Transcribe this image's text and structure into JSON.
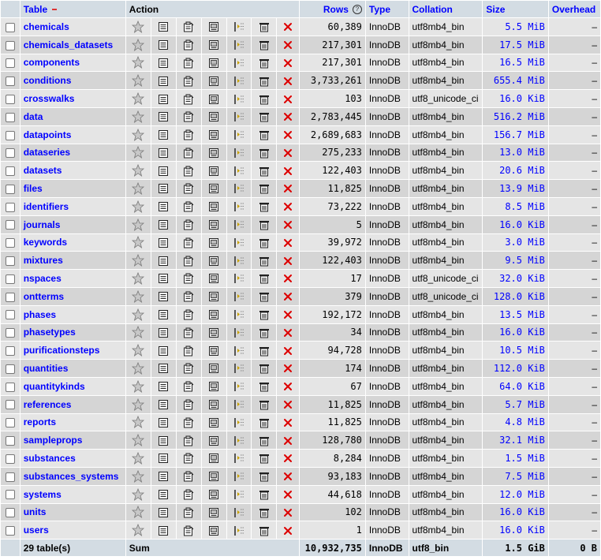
{
  "header": {
    "table": "Table",
    "action": "Action",
    "rows": "Rows",
    "type": "Type",
    "collation": "Collation",
    "size": "Size",
    "overhead": "Overhead"
  },
  "rows": [
    {
      "name": "chemicals",
      "rows": "60,389",
      "type": "InnoDB",
      "collation": "utf8mb4_bin",
      "size": "5.5 MiB",
      "overhead": "–"
    },
    {
      "name": "chemicals_datasets",
      "rows": "217,301",
      "type": "InnoDB",
      "collation": "utf8mb4_bin",
      "size": "17.5 MiB",
      "overhead": "–"
    },
    {
      "name": "components",
      "rows": "217,301",
      "type": "InnoDB",
      "collation": "utf8mb4_bin",
      "size": "16.5 MiB",
      "overhead": "–"
    },
    {
      "name": "conditions",
      "rows": "3,733,261",
      "type": "InnoDB",
      "collation": "utf8mb4_bin",
      "size": "655.4 MiB",
      "overhead": "–"
    },
    {
      "name": "crosswalks",
      "rows": "103",
      "type": "InnoDB",
      "collation": "utf8_unicode_ci",
      "size": "16.0 KiB",
      "overhead": "–"
    },
    {
      "name": "data",
      "rows": "2,783,445",
      "type": "InnoDB",
      "collation": "utf8mb4_bin",
      "size": "516.2 MiB",
      "overhead": "–"
    },
    {
      "name": "datapoints",
      "rows": "2,689,683",
      "type": "InnoDB",
      "collation": "utf8mb4_bin",
      "size": "156.7 MiB",
      "overhead": "–"
    },
    {
      "name": "dataseries",
      "rows": "275,233",
      "type": "InnoDB",
      "collation": "utf8mb4_bin",
      "size": "13.0 MiB",
      "overhead": "–"
    },
    {
      "name": "datasets",
      "rows": "122,403",
      "type": "InnoDB",
      "collation": "utf8mb4_bin",
      "size": "20.6 MiB",
      "overhead": "–"
    },
    {
      "name": "files",
      "rows": "11,825",
      "type": "InnoDB",
      "collation": "utf8mb4_bin",
      "size": "13.9 MiB",
      "overhead": "–"
    },
    {
      "name": "identifiers",
      "rows": "73,222",
      "type": "InnoDB",
      "collation": "utf8mb4_bin",
      "size": "8.5 MiB",
      "overhead": "–"
    },
    {
      "name": "journals",
      "rows": "5",
      "type": "InnoDB",
      "collation": "utf8mb4_bin",
      "size": "16.0 KiB",
      "overhead": "–"
    },
    {
      "name": "keywords",
      "rows": "39,972",
      "type": "InnoDB",
      "collation": "utf8mb4_bin",
      "size": "3.0 MiB",
      "overhead": "–"
    },
    {
      "name": "mixtures",
      "rows": "122,403",
      "type": "InnoDB",
      "collation": "utf8mb4_bin",
      "size": "9.5 MiB",
      "overhead": "–"
    },
    {
      "name": "nspaces",
      "rows": "17",
      "type": "InnoDB",
      "collation": "utf8_unicode_ci",
      "size": "32.0 KiB",
      "overhead": "–"
    },
    {
      "name": "ontterms",
      "rows": "379",
      "type": "InnoDB",
      "collation": "utf8_unicode_ci",
      "size": "128.0 KiB",
      "overhead": "–"
    },
    {
      "name": "phases",
      "rows": "192,172",
      "type": "InnoDB",
      "collation": "utf8mb4_bin",
      "size": "13.5 MiB",
      "overhead": "–"
    },
    {
      "name": "phasetypes",
      "rows": "34",
      "type": "InnoDB",
      "collation": "utf8mb4_bin",
      "size": "16.0 KiB",
      "overhead": "–"
    },
    {
      "name": "purificationsteps",
      "rows": "94,728",
      "type": "InnoDB",
      "collation": "utf8mb4_bin",
      "size": "10.5 MiB",
      "overhead": "–"
    },
    {
      "name": "quantities",
      "rows": "174",
      "type": "InnoDB",
      "collation": "utf8mb4_bin",
      "size": "112.0 KiB",
      "overhead": "–"
    },
    {
      "name": "quantitykinds",
      "rows": "67",
      "type": "InnoDB",
      "collation": "utf8mb4_bin",
      "size": "64.0 KiB",
      "overhead": "–"
    },
    {
      "name": "references",
      "rows": "11,825",
      "type": "InnoDB",
      "collation": "utf8mb4_bin",
      "size": "5.7 MiB",
      "overhead": "–"
    },
    {
      "name": "reports",
      "rows": "11,825",
      "type": "InnoDB",
      "collation": "utf8mb4_bin",
      "size": "4.8 MiB",
      "overhead": "–"
    },
    {
      "name": "sampleprops",
      "rows": "128,780",
      "type": "InnoDB",
      "collation": "utf8mb4_bin",
      "size": "32.1 MiB",
      "overhead": "–"
    },
    {
      "name": "substances",
      "rows": "8,284",
      "type": "InnoDB",
      "collation": "utf8mb4_bin",
      "size": "1.5 MiB",
      "overhead": "–"
    },
    {
      "name": "substances_systems",
      "rows": "93,183",
      "type": "InnoDB",
      "collation": "utf8mb4_bin",
      "size": "7.5 MiB",
      "overhead": "–"
    },
    {
      "name": "systems",
      "rows": "44,618",
      "type": "InnoDB",
      "collation": "utf8mb4_bin",
      "size": "12.0 MiB",
      "overhead": "–"
    },
    {
      "name": "units",
      "rows": "102",
      "type": "InnoDB",
      "collation": "utf8mb4_bin",
      "size": "16.0 KiB",
      "overhead": "–"
    },
    {
      "name": "users",
      "rows": "1",
      "type": "InnoDB",
      "collation": "utf8mb4_bin",
      "size": "16.0 KiB",
      "overhead": "–"
    }
  ],
  "summary": {
    "count": "29 table(s)",
    "label": "Sum",
    "rows": "10,932,735",
    "type": "InnoDB",
    "collation": "utf8_bin",
    "size": "1.5 GiB",
    "overhead": "0 B"
  },
  "icons": [
    "favorite-star-icon",
    "browse-icon",
    "structure-icon",
    "search-icon",
    "insert-icon",
    "empty-icon",
    "drop-icon"
  ],
  "colors": {
    "link": "#0000ff",
    "header_bg": "#d3dce3",
    "row_odd": "#e5e5e5",
    "row_even": "#d5d5d5",
    "drop": "#dd0000"
  }
}
